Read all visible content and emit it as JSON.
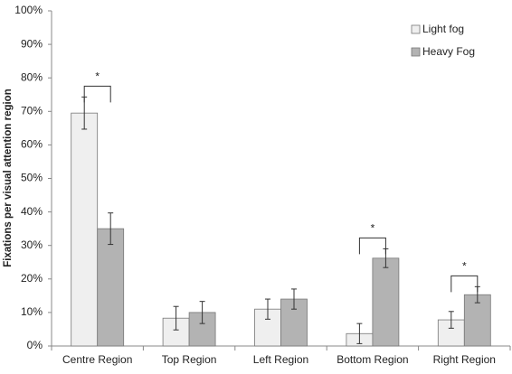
{
  "chart_data": {
    "type": "bar",
    "y_label": "Fixations per visual attention region",
    "categories": [
      "Centre Region",
      "Top Region",
      "Left Region",
      "Bottom Region",
      "Right Region"
    ],
    "series": [
      {
        "name": "Light fog",
        "color": "#efefef",
        "values": [
          69.5,
          8.3,
          11,
          3.7,
          7.8
        ],
        "errors": [
          4.8,
          3.5,
          3,
          3,
          2.5
        ]
      },
      {
        "name": "Heavy Fog",
        "color": "#b3b3b3",
        "values": [
          35,
          10,
          14,
          26.2,
          15.3
        ],
        "errors": [
          4.7,
          3.3,
          3,
          2.8,
          2.4
        ]
      }
    ],
    "annotations": [
      {
        "label": "*",
        "category": "Centre Region"
      },
      {
        "label": "*",
        "category": "Bottom Region"
      },
      {
        "label": "*",
        "category": "Right Region"
      }
    ],
    "ylim": [
      0,
      100
    ],
    "yticks": [
      {
        "value": 0,
        "label": "0%"
      },
      {
        "value": 10,
        "label": "10%"
      },
      {
        "value": 20,
        "label": "20%"
      },
      {
        "value": 30,
        "label": "30%"
      },
      {
        "value": 40,
        "label": "40%"
      },
      {
        "value": 50,
        "label": "50%"
      },
      {
        "value": 60,
        "label": "60%"
      },
      {
        "value": 70,
        "label": "70%"
      },
      {
        "value": 80,
        "label": "80%"
      },
      {
        "value": 90,
        "label": "90%"
      },
      {
        "value": 100,
        "label": "100%"
      }
    ],
    "legend": "top-right",
    "grid": false
  }
}
